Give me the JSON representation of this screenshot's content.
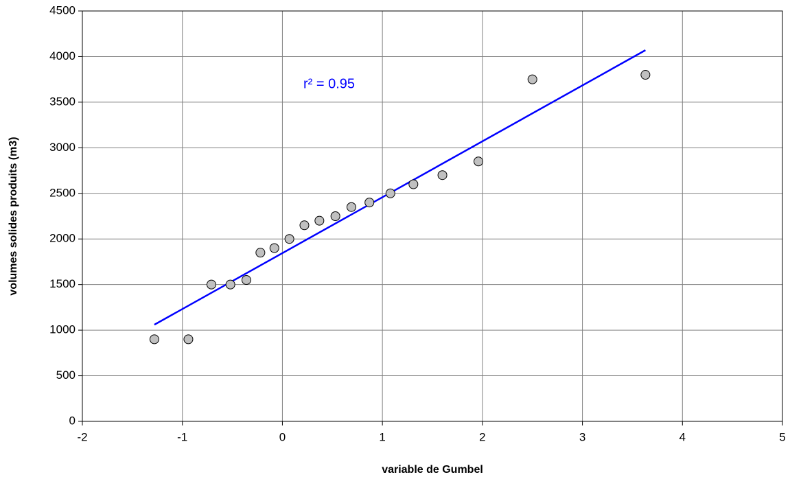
{
  "chart_data": {
    "type": "scatter",
    "xlabel": "variable de Gumbel",
    "ylabel": "volumes solides produits (m3)",
    "annotation": "r² = 0.95",
    "x": [
      -1.28,
      -0.94,
      -0.71,
      -0.52,
      -0.36,
      -0.22,
      -0.08,
      0.07,
      0.22,
      0.37,
      0.53,
      0.69,
      0.87,
      1.08,
      1.31,
      1.6,
      1.96,
      2.5,
      3.63
    ],
    "values": [
      900,
      900,
      1500,
      1500,
      1550,
      1850,
      1900,
      2000,
      2150,
      2200,
      2250,
      2350,
      2400,
      2500,
      2600,
      2700,
      2850,
      3750,
      3800
    ],
    "color": "#c0c0c0",
    "trendline": {
      "x": [
        -1.28,
        3.63
      ],
      "y": [
        1060,
        4070
      ],
      "color": "#0000ff"
    },
    "xlim": [
      -2,
      5
    ],
    "xticks": [
      -2,
      -1,
      0,
      1,
      2,
      3,
      4,
      5
    ],
    "ylim": [
      0,
      4500
    ],
    "yticks": [
      0,
      500,
      1000,
      1500,
      2000,
      2500,
      3000,
      3500,
      4000,
      4500
    ],
    "grid": true
  }
}
